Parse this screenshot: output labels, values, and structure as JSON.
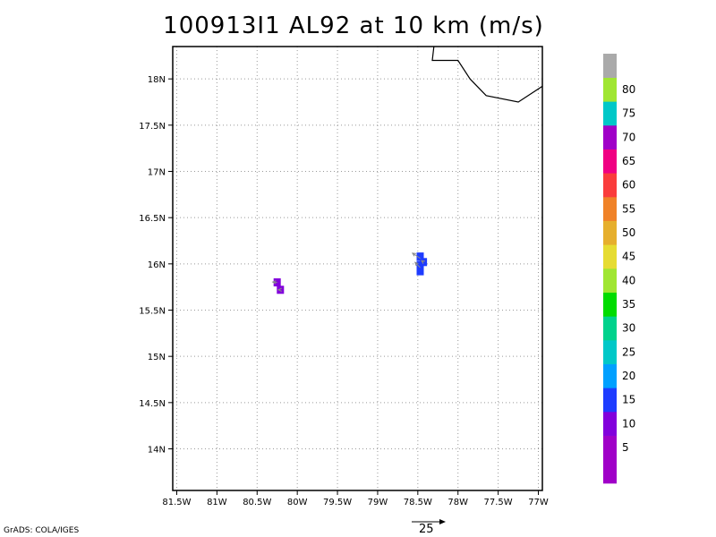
{
  "title": "100913I1 AL92 at 10 km (m/s)",
  "credit": "GrADS: COLA/IGES",
  "map": {
    "lon_range": [
      -81.55,
      -76.95
    ],
    "lat_range": [
      13.55,
      18.35
    ],
    "x_ticks": [
      {
        "lon": -81.5,
        "label": "81.5W"
      },
      {
        "lon": -81.0,
        "label": "81W"
      },
      {
        "lon": -80.5,
        "label": "80.5W"
      },
      {
        "lon": -80.0,
        "label": "80W"
      },
      {
        "lon": -79.5,
        "label": "79.5W"
      },
      {
        "lon": -79.0,
        "label": "79W"
      },
      {
        "lon": -78.5,
        "label": "78.5W"
      },
      {
        "lon": -78.0,
        "label": "78W"
      },
      {
        "lon": -77.5,
        "label": "77.5W"
      },
      {
        "lon": -77.0,
        "label": "77W"
      }
    ],
    "y_ticks": [
      {
        "lat": 14.0,
        "label": "14N"
      },
      {
        "lat": 14.5,
        "label": "14.5N"
      },
      {
        "lat": 15.0,
        "label": "15N"
      },
      {
        "lat": 15.5,
        "label": "15.5N"
      },
      {
        "lat": 16.0,
        "label": "16N"
      },
      {
        "lat": 16.5,
        "label": "16.5N"
      },
      {
        "lat": 17.0,
        "label": "17N"
      },
      {
        "lat": 17.5,
        "label": "17.5N"
      },
      {
        "lat": 18.0,
        "label": "18N"
      }
    ],
    "coastline": [
      [
        -78.3,
        18.35
      ],
      [
        -78.32,
        18.2
      ],
      [
        -78.0,
        18.2
      ],
      [
        -77.85,
        18.0
      ],
      [
        -77.65,
        17.82
      ],
      [
        -77.25,
        17.75
      ],
      [
        -76.95,
        17.92
      ]
    ],
    "cells": [
      {
        "lon": -80.25,
        "lat": 15.8,
        "speed": 8
      },
      {
        "lon": -80.21,
        "lat": 15.72,
        "speed": 8
      },
      {
        "lon": -78.47,
        "lat": 16.08,
        "speed": 12
      },
      {
        "lon": -78.47,
        "lat": 15.99,
        "speed": 12
      },
      {
        "lon": -78.43,
        "lat": 16.02,
        "speed": 12
      },
      {
        "lon": -78.47,
        "lat": 15.92,
        "speed": 12
      }
    ],
    "vectors": [
      {
        "lon": -80.25,
        "lat": 15.8,
        "u": -3.5,
        "v": 0.3
      },
      {
        "lon": -80.21,
        "lat": 15.72,
        "u": -1.5,
        "v": 0.0
      },
      {
        "lon": -78.47,
        "lat": 16.06,
        "u": -6.0,
        "v": 4.0
      },
      {
        "lon": -78.47,
        "lat": 15.96,
        "u": -4.0,
        "v": 4.0
      },
      {
        "lon": -78.43,
        "lat": 16.02,
        "u": -1.5,
        "v": 1.0
      }
    ],
    "reference_vector": {
      "speed": 25,
      "label": "25"
    }
  },
  "colorbar": {
    "levels": [
      {
        "label": "",
        "color": "#a000c8"
      },
      {
        "label": "5",
        "color": "#a000c8"
      },
      {
        "label": "10",
        "color": "#8200dc"
      },
      {
        "label": "15",
        "color": "#1e3cff"
      },
      {
        "label": "20",
        "color": "#00a0ff"
      },
      {
        "label": "25",
        "color": "#00c8c8"
      },
      {
        "label": "30",
        "color": "#00d28c"
      },
      {
        "label": "35",
        "color": "#00dc00"
      },
      {
        "label": "40",
        "color": "#a0e632"
      },
      {
        "label": "45",
        "color": "#e6dc32"
      },
      {
        "label": "50",
        "color": "#e6af2d"
      },
      {
        "label": "55",
        "color": "#f08228"
      },
      {
        "label": "60",
        "color": "#fa3c3c"
      },
      {
        "label": "65",
        "color": "#f00082"
      },
      {
        "label": "70",
        "color": "#a000c8"
      },
      {
        "label": "75",
        "color": "#00c8c8"
      },
      {
        "label": "80",
        "color": "#a0e632"
      },
      {
        "label": "",
        "color": "#aaaaaa"
      }
    ]
  }
}
